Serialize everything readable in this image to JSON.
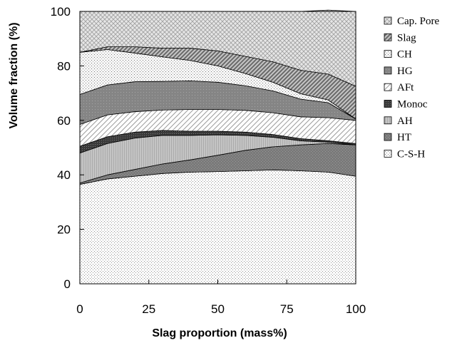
{
  "chart_data": {
    "type": "area",
    "stacked": true,
    "xlabel": "Slag proportion (mass%)",
    "ylabel": "Volume fraction (%)",
    "xlim": [
      0,
      100
    ],
    "ylim": [
      0,
      100
    ],
    "x_ticks": [
      0,
      25,
      50,
      75,
      100
    ],
    "y_ticks": [
      0,
      20,
      40,
      60,
      80,
      100
    ],
    "grid": false,
    "legend_position": "right",
    "x": [
      0,
      10,
      20,
      30,
      40,
      50,
      60,
      70,
      80,
      90,
      100
    ],
    "series": [
      {
        "name": "C-S-H",
        "values": [
          36.5,
          38.5,
          39.5,
          40.5,
          41,
          41.2,
          41.5,
          41.8,
          41.5,
          41,
          39.5
        ]
      },
      {
        "name": "HT",
        "values": [
          0.5,
          1.5,
          2.5,
          3.5,
          4.5,
          6,
          7.5,
          8.5,
          9.5,
          10.5,
          11.5
        ]
      },
      {
        "name": "AH",
        "values": [
          11,
          11.5,
          11.5,
          10.5,
          9,
          7.5,
          5.5,
          3.5,
          1.5,
          0.5,
          0
        ]
      },
      {
        "name": "Monoc",
        "values": [
          2.5,
          2.5,
          2.2,
          1.8,
          1.5,
          1.3,
          1.2,
          1,
          0.8,
          0.5,
          0.5
        ]
      },
      {
        "name": "AFt",
        "values": [
          8,
          8,
          7.5,
          7.5,
          8,
          8,
          8,
          8,
          8,
          8.5,
          8.5
        ]
      },
      {
        "name": "HG",
        "values": [
          11,
          11,
          11,
          10.5,
          10.5,
          10,
          9,
          8,
          6.5,
          5.5,
          0.5
        ]
      },
      {
        "name": "CH",
        "values": [
          15.5,
          13,
          10.5,
          9,
          7.5,
          6,
          4.5,
          3.2,
          2,
          1,
          0
        ]
      },
      {
        "name": "Slag",
        "values": [
          0,
          1,
          2.3,
          3.2,
          4.5,
          5.5,
          6.3,
          7.5,
          8.6,
          9.5,
          12
        ]
      },
      {
        "name": "Cap. Pore",
        "values": [
          15,
          13,
          13,
          13.5,
          13.5,
          14.5,
          16.5,
          18.5,
          21.6,
          23.5,
          27.5
        ]
      }
    ]
  }
}
